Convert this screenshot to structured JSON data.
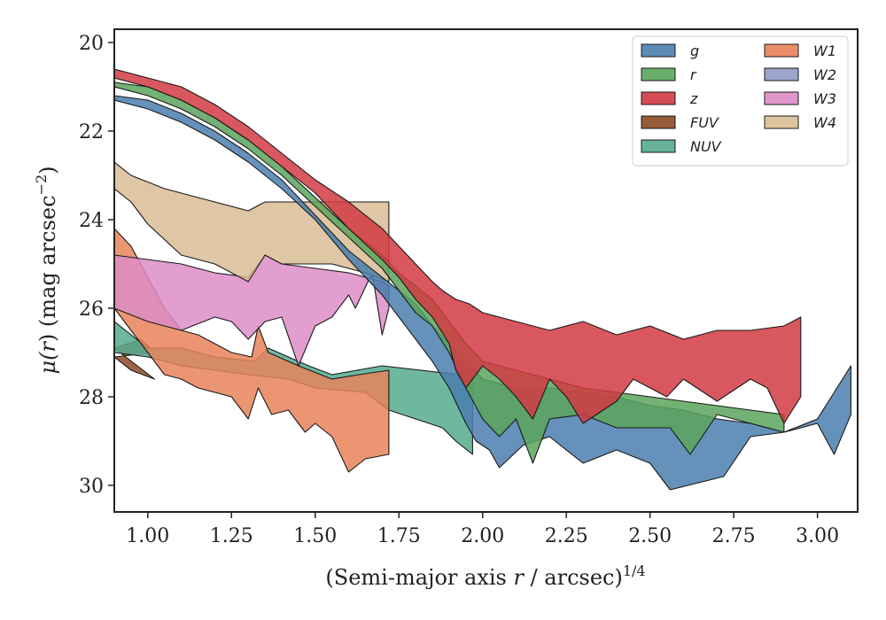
{
  "chart_data": {
    "type": "area",
    "xlabel_main": "(Semi-major axis ",
    "xlabel_var": "r",
    "xlabel_rest": " / arcsec)",
    "xlabel_sup": "1/4",
    "ylabel_main": "μ(",
    "ylabel_var": "r",
    "ylabel_rest": ") (mag arcsec",
    "ylabel_sup": "−2",
    "ylabel_close": ")",
    "xlim": [
      0.9,
      3.12
    ],
    "ylim": [
      30.6,
      19.7
    ],
    "y_inverted": true,
    "grid": false,
    "legend_position": "top-right",
    "xticks": [
      1.0,
      1.25,
      1.5,
      1.75,
      2.0,
      2.25,
      2.5,
      2.75,
      3.0
    ],
    "xtick_labels": [
      "1.00",
      "1.25",
      "1.50",
      "1.75",
      "2.00",
      "2.25",
      "2.50",
      "2.75",
      "3.00"
    ],
    "yticks": [
      20,
      22,
      24,
      26,
      28,
      30
    ],
    "ytick_labels": [
      "20",
      "22",
      "24",
      "26",
      "28",
      "30"
    ],
    "series": [
      {
        "name": "FUV",
        "color": "#8c4a24",
        "upper": [
          [
            0.9,
            26.9
          ],
          [
            0.98,
            26.7
          ],
          [
            1.02,
            27.0
          ]
        ],
        "lower": [
          [
            0.9,
            27.1
          ],
          [
            0.95,
            27.4
          ],
          [
            1.02,
            27.6
          ]
        ]
      },
      {
        "name": "NUV",
        "color": "#55ab8f",
        "upper": [
          [
            0.9,
            26.3
          ],
          [
            0.95,
            26.6
          ],
          [
            1.0,
            26.9
          ],
          [
            1.1,
            26.9
          ],
          [
            1.2,
            27.1
          ],
          [
            1.32,
            27.2
          ],
          [
            1.36,
            26.9
          ],
          [
            1.48,
            27.3
          ],
          [
            1.55,
            27.5
          ],
          [
            1.7,
            27.3
          ],
          [
            1.93,
            27.5
          ],
          [
            1.97,
            27.4
          ]
        ],
        "lower": [
          [
            1.97,
            29.3
          ],
          [
            1.92,
            29.0
          ],
          [
            1.88,
            28.7
          ],
          [
            1.72,
            28.3
          ],
          [
            1.65,
            27.9
          ],
          [
            1.5,
            27.8
          ],
          [
            1.42,
            27.6
          ],
          [
            1.3,
            27.5
          ],
          [
            1.2,
            27.4
          ],
          [
            1.1,
            27.3
          ],
          [
            1.0,
            27.1
          ],
          [
            0.9,
            27.0
          ]
        ]
      },
      {
        "name": "W1",
        "color": "#e8825a",
        "upper": [
          [
            0.9,
            24.2
          ],
          [
            0.95,
            24.6
          ],
          [
            1.0,
            25.3
          ],
          [
            1.05,
            26.0
          ],
          [
            1.1,
            26.5
          ],
          [
            1.15,
            26.6
          ],
          [
            1.2,
            26.8
          ],
          [
            1.25,
            27.0
          ],
          [
            1.31,
            27.1
          ],
          [
            1.33,
            26.4
          ],
          [
            1.36,
            27.0
          ],
          [
            1.45,
            27.3
          ],
          [
            1.55,
            27.6
          ],
          [
            1.63,
            27.5
          ],
          [
            1.72,
            27.4
          ]
        ],
        "lower": [
          [
            1.72,
            29.3
          ],
          [
            1.65,
            29.4
          ],
          [
            1.6,
            29.7
          ],
          [
            1.55,
            28.9
          ],
          [
            1.5,
            28.6
          ],
          [
            1.47,
            28.8
          ],
          [
            1.42,
            28.3
          ],
          [
            1.37,
            28.4
          ],
          [
            1.33,
            27.8
          ],
          [
            1.3,
            28.5
          ],
          [
            1.25,
            28.0
          ],
          [
            1.15,
            27.8
          ],
          [
            1.1,
            27.6
          ],
          [
            1.05,
            27.5
          ],
          [
            1.0,
            27.0
          ],
          [
            0.95,
            26.5
          ],
          [
            0.9,
            26.0
          ]
        ]
      },
      {
        "name": "W2",
        "color": "#8f9cc4",
        "upper": [],
        "lower": []
      },
      {
        "name": "W3",
        "color": "#dd8dc6",
        "upper": [
          [
            0.9,
            24.8
          ],
          [
            1.0,
            24.9
          ],
          [
            1.1,
            25.0
          ],
          [
            1.2,
            25.2
          ],
          [
            1.3,
            25.3
          ],
          [
            1.35,
            24.8
          ],
          [
            1.4,
            25.0
          ],
          [
            1.5,
            25.1
          ],
          [
            1.6,
            25.2
          ],
          [
            1.7,
            25.4
          ],
          [
            1.72,
            25.5
          ]
        ],
        "lower": [
          [
            1.72,
            26.0
          ],
          [
            1.7,
            26.6
          ],
          [
            1.67,
            25.2
          ],
          [
            1.62,
            26.0
          ],
          [
            1.6,
            25.7
          ],
          [
            1.55,
            26.2
          ],
          [
            1.5,
            26.4
          ],
          [
            1.45,
            27.3
          ],
          [
            1.4,
            26.2
          ],
          [
            1.35,
            26.3
          ],
          [
            1.3,
            26.7
          ],
          [
            1.25,
            26.3
          ],
          [
            1.2,
            26.2
          ],
          [
            1.1,
            26.5
          ],
          [
            1.0,
            26.3
          ],
          [
            0.9,
            26.0
          ]
        ]
      },
      {
        "name": "W4",
        "color": "#d9bc94",
        "upper": [
          [
            0.9,
            22.7
          ],
          [
            0.95,
            23.0
          ],
          [
            1.05,
            23.3
          ],
          [
            1.2,
            23.6
          ],
          [
            1.3,
            23.8
          ],
          [
            1.35,
            23.6
          ],
          [
            1.5,
            23.6
          ],
          [
            1.6,
            23.6
          ],
          [
            1.72,
            23.6
          ]
        ],
        "lower": [
          [
            1.72,
            25.4
          ],
          [
            1.65,
            25.2
          ],
          [
            1.55,
            25.0
          ],
          [
            1.45,
            25.0
          ],
          [
            1.4,
            25.0
          ],
          [
            1.35,
            24.8
          ],
          [
            1.3,
            25.4
          ],
          [
            1.2,
            25.0
          ],
          [
            1.1,
            24.8
          ],
          [
            1.0,
            24.1
          ],
          [
            0.95,
            23.6
          ],
          [
            0.9,
            23.3
          ]
        ]
      },
      {
        "name": "g",
        "color": "#4a7eae",
        "upper": [
          [
            0.9,
            21.2
          ],
          [
            1.0,
            21.3
          ],
          [
            1.1,
            21.6
          ],
          [
            1.2,
            22.0
          ],
          [
            1.3,
            22.5
          ],
          [
            1.4,
            23.1
          ],
          [
            1.5,
            23.9
          ],
          [
            1.6,
            24.7
          ],
          [
            1.7,
            25.3
          ],
          [
            1.8,
            25.9
          ],
          [
            1.85,
            26.4
          ],
          [
            1.9,
            26.8
          ],
          [
            1.95,
            27.2
          ],
          [
            2.0,
            27.6
          ],
          [
            2.1,
            27.8
          ],
          [
            2.2,
            27.8
          ],
          [
            2.3,
            27.9
          ],
          [
            2.4,
            28.0
          ],
          [
            2.5,
            28.2
          ],
          [
            2.6,
            28.3
          ],
          [
            2.7,
            28.5
          ],
          [
            2.8,
            28.6
          ],
          [
            2.9,
            28.8
          ],
          [
            3.0,
            28.5
          ],
          [
            3.05,
            27.9
          ],
          [
            3.1,
            27.3
          ]
        ],
        "lower": [
          [
            3.1,
            28.4
          ],
          [
            3.05,
            29.3
          ],
          [
            3.0,
            28.6
          ],
          [
            2.9,
            28.8
          ],
          [
            2.8,
            28.9
          ],
          [
            2.72,
            29.8
          ],
          [
            2.56,
            30.1
          ],
          [
            2.5,
            29.5
          ],
          [
            2.4,
            29.2
          ],
          [
            2.3,
            29.5
          ],
          [
            2.2,
            28.9
          ],
          [
            2.12,
            29.1
          ],
          [
            2.05,
            29.6
          ],
          [
            2.02,
            29.2
          ],
          [
            1.98,
            29.0
          ],
          [
            1.95,
            28.6
          ],
          [
            1.9,
            27.8
          ],
          [
            1.85,
            27.2
          ],
          [
            1.8,
            26.7
          ],
          [
            1.7,
            25.7
          ],
          [
            1.6,
            24.9
          ],
          [
            1.5,
            24.0
          ],
          [
            1.4,
            23.3
          ],
          [
            1.3,
            22.7
          ],
          [
            1.2,
            22.2
          ],
          [
            1.1,
            21.8
          ],
          [
            1.0,
            21.5
          ],
          [
            0.9,
            21.3
          ]
        ]
      },
      {
        "name": "r",
        "color": "#5aa55c",
        "upper": [
          [
            0.9,
            20.9
          ],
          [
            1.0,
            21.0
          ],
          [
            1.1,
            21.3
          ],
          [
            1.2,
            21.7
          ],
          [
            1.3,
            22.2
          ],
          [
            1.4,
            22.8
          ],
          [
            1.5,
            23.5
          ],
          [
            1.6,
            24.2
          ],
          [
            1.7,
            24.8
          ],
          [
            1.75,
            25.2
          ],
          [
            1.8,
            25.5
          ],
          [
            1.85,
            25.8
          ],
          [
            1.9,
            26.3
          ],
          [
            1.95,
            26.8
          ],
          [
            2.0,
            27.2
          ],
          [
            2.1,
            27.4
          ],
          [
            2.2,
            27.6
          ],
          [
            2.3,
            27.8
          ],
          [
            2.4,
            27.9
          ],
          [
            2.5,
            28.0
          ],
          [
            2.6,
            28.1
          ],
          [
            2.7,
            28.2
          ],
          [
            2.8,
            28.3
          ],
          [
            2.9,
            28.4
          ]
        ],
        "lower": [
          [
            2.9,
            28.8
          ],
          [
            2.8,
            28.6
          ],
          [
            2.7,
            28.4
          ],
          [
            2.62,
            29.3
          ],
          [
            2.56,
            28.7
          ],
          [
            2.4,
            28.7
          ],
          [
            2.3,
            28.4
          ],
          [
            2.2,
            28.5
          ],
          [
            2.15,
            29.5
          ],
          [
            2.1,
            28.5
          ],
          [
            2.05,
            28.9
          ],
          [
            2.0,
            28.5
          ],
          [
            1.95,
            27.8
          ],
          [
            1.9,
            27.0
          ],
          [
            1.85,
            26.4
          ],
          [
            1.8,
            26.1
          ],
          [
            1.75,
            25.6
          ],
          [
            1.7,
            25.1
          ],
          [
            1.6,
            24.4
          ],
          [
            1.5,
            23.7
          ],
          [
            1.4,
            23.0
          ],
          [
            1.3,
            22.4
          ],
          [
            1.2,
            21.9
          ],
          [
            1.1,
            21.5
          ],
          [
            1.0,
            21.2
          ],
          [
            0.9,
            21.0
          ]
        ]
      },
      {
        "name": "z",
        "color": "#d23a42",
        "upper": [
          [
            0.9,
            20.6
          ],
          [
            1.0,
            20.8
          ],
          [
            1.1,
            21.0
          ],
          [
            1.2,
            21.4
          ],
          [
            1.3,
            21.9
          ],
          [
            1.4,
            22.5
          ],
          [
            1.5,
            23.1
          ],
          [
            1.6,
            23.6
          ],
          [
            1.7,
            24.2
          ],
          [
            1.75,
            24.6
          ],
          [
            1.8,
            25.0
          ],
          [
            1.85,
            25.4
          ],
          [
            1.88,
            25.6
          ],
          [
            1.92,
            25.8
          ],
          [
            1.96,
            25.9
          ],
          [
            2.0,
            26.1
          ],
          [
            2.1,
            26.3
          ],
          [
            2.2,
            26.5
          ],
          [
            2.3,
            26.3
          ],
          [
            2.4,
            26.6
          ],
          [
            2.5,
            26.4
          ],
          [
            2.6,
            26.7
          ],
          [
            2.7,
            26.5
          ],
          [
            2.8,
            26.5
          ],
          [
            2.9,
            26.4
          ],
          [
            2.95,
            26.2
          ]
        ],
        "lower": [
          [
            2.95,
            28.0
          ],
          [
            2.9,
            28.6
          ],
          [
            2.85,
            27.8
          ],
          [
            2.8,
            27.6
          ],
          [
            2.7,
            28.1
          ],
          [
            2.6,
            27.6
          ],
          [
            2.55,
            28.0
          ],
          [
            2.45,
            27.6
          ],
          [
            2.4,
            28.1
          ],
          [
            2.3,
            28.6
          ],
          [
            2.25,
            28.0
          ],
          [
            2.2,
            27.6
          ],
          [
            2.15,
            28.5
          ],
          [
            2.1,
            28.0
          ],
          [
            2.05,
            27.6
          ],
          [
            2.0,
            27.3
          ],
          [
            1.95,
            27.8
          ],
          [
            1.92,
            27.4
          ],
          [
            1.9,
            26.8
          ],
          [
            1.85,
            26.2
          ],
          [
            1.8,
            25.8
          ],
          [
            1.75,
            25.3
          ],
          [
            1.7,
            24.9
          ],
          [
            1.6,
            24.2
          ],
          [
            1.5,
            23.4
          ],
          [
            1.4,
            22.8
          ],
          [
            1.3,
            22.2
          ],
          [
            1.2,
            21.7
          ],
          [
            1.1,
            21.3
          ],
          [
            1.0,
            21.0
          ],
          [
            0.9,
            20.8
          ]
        ]
      }
    ]
  },
  "legend": {
    "col1": [
      {
        "label": "g",
        "color": "#4a7eae"
      },
      {
        "label": "r",
        "color": "#5aa55c"
      },
      {
        "label": "z",
        "color": "#d23a42"
      },
      {
        "label": "FUV",
        "color": "#8c4a24"
      },
      {
        "label": "NUV",
        "color": "#55ab8f"
      }
    ],
    "col2": [
      {
        "label": "W1",
        "color": "#e8825a"
      },
      {
        "label": "W2",
        "color": "#8f9cc4"
      },
      {
        "label": "W3",
        "color": "#dd8dc6"
      },
      {
        "label": "W4",
        "color": "#d9bc94"
      }
    ]
  }
}
